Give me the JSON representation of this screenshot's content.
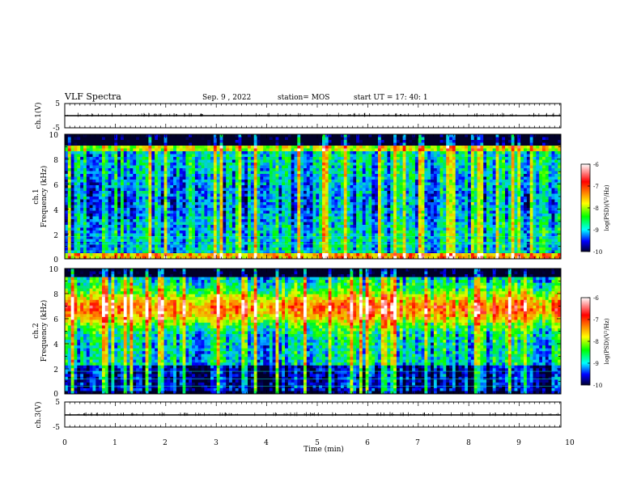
{
  "header": {
    "title": "VLF Spectra",
    "date": "Sep. 9 , 2022",
    "station": "station= MOS",
    "start_time": "start UT = 17: 40: 1"
  },
  "chart_data": [
    {
      "type": "line",
      "panel": "ch1-waveform",
      "ylabel": "ch.1(V)",
      "ylim": [
        -5,
        5
      ],
      "yticks": [
        5,
        -5
      ],
      "xlim": [
        0,
        10
      ],
      "series": [
        {
          "values_summary": "near-zero signal with small spikes"
        }
      ]
    },
    {
      "type": "heatmap",
      "panel": "ch1-spectrogram",
      "ylabel": "ch.1\nFrequency (kHz)",
      "ylim": [
        0,
        10
      ],
      "yticks": [
        0,
        2,
        4,
        6,
        8,
        10
      ],
      "xlim": [
        0,
        10
      ],
      "colorbar": {
        "label": "log(PSD)(V²/Hz)",
        "range": [
          -10,
          -6
        ],
        "ticks": [
          "-6",
          "-7",
          "-8",
          "-9",
          "-10"
        ]
      }
    },
    {
      "type": "heatmap",
      "panel": "ch2-spectrogram",
      "ylabel": "ch.2\nFrequency (kHz)",
      "ylim": [
        0,
        10
      ],
      "yticks": [
        0,
        2,
        4,
        6,
        8,
        10
      ],
      "xlim": [
        0,
        10
      ],
      "colorbar": {
        "label": "log(PSD)(V²/Hz)",
        "range": [
          -10,
          -6
        ],
        "ticks": [
          "-6",
          "-7",
          "-8",
          "-9",
          "-10"
        ]
      }
    },
    {
      "type": "line",
      "panel": "ch3-waveform",
      "ylabel": "ch.3(V)",
      "ylim": [
        -5,
        5
      ],
      "yticks": [
        5,
        -5
      ],
      "xlim": [
        0,
        10
      ],
      "series": [
        {
          "values_summary": "near-zero signal with small spikes"
        }
      ]
    }
  ],
  "xaxis": {
    "label": "Time (min)",
    "ticks": [
      "0",
      "1",
      "2",
      "3",
      "4",
      "5",
      "6",
      "7",
      "8",
      "9",
      "10"
    ]
  },
  "labels": {
    "ch1_volt": "ch.1(V)",
    "ch3_volt": "ch.3(V)",
    "ch1_name": "ch.1",
    "ch2_name": "ch.2",
    "freq_label": "Frequency (kHz)",
    "colorbar_label": "log(PSD)(V²/Hz)",
    "volt_ticks": [
      "5",
      "-5"
    ],
    "freq_ticks": [
      "0",
      "2",
      "4",
      "6",
      "8",
      "10"
    ],
    "cbar_ticks": [
      "-6",
      "-7",
      "-8",
      "-9",
      "-10"
    ]
  }
}
